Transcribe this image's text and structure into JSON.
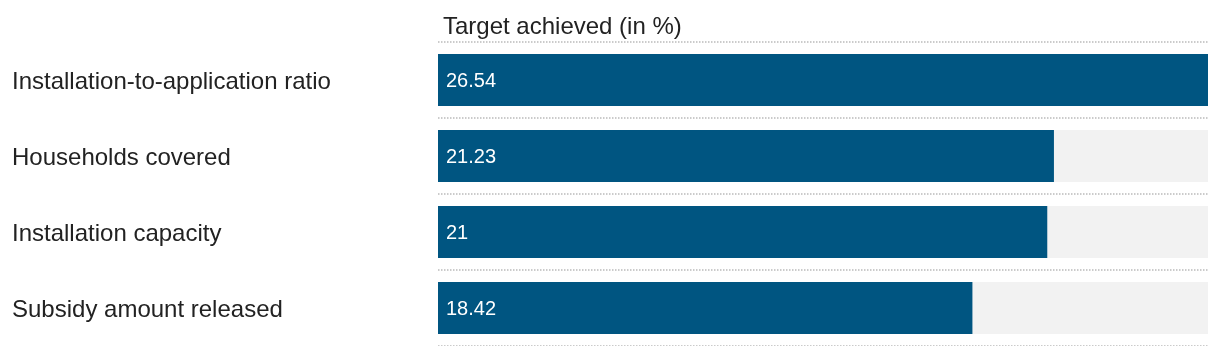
{
  "chart_data": {
    "type": "bar",
    "orientation": "horizontal",
    "title": "Target achieved (in %)",
    "categories": [
      "Installation-to-application ratio",
      "Households covered",
      "Installation capacity",
      "Subsidy amount released"
    ],
    "values": [
      26.54,
      21.23,
      21,
      18.42
    ],
    "color": "#005581",
    "data_labels": true,
    "grid": true,
    "tick_labels": "y"
  }
}
